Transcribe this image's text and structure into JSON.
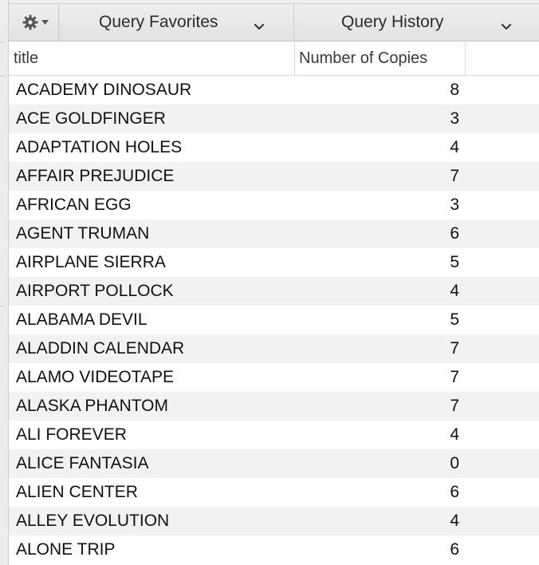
{
  "toolbar": {
    "gear_icon": "gear-icon",
    "query_favorites_label": "Query Favorites",
    "query_history_label": "Query History",
    "chevron_icon": "chevron-down-icon"
  },
  "table": {
    "columns": [
      "title",
      "Number of Copies"
    ],
    "rows": [
      {
        "title": "ACADEMY DINOSAUR",
        "copies": "8"
      },
      {
        "title": "ACE GOLDFINGER",
        "copies": "3"
      },
      {
        "title": "ADAPTATION HOLES",
        "copies": "4"
      },
      {
        "title": "AFFAIR PREJUDICE",
        "copies": "7"
      },
      {
        "title": "AFRICAN EGG",
        "copies": "3"
      },
      {
        "title": "AGENT TRUMAN",
        "copies": "6"
      },
      {
        "title": "AIRPLANE SIERRA",
        "copies": "5"
      },
      {
        "title": "AIRPORT POLLOCK",
        "copies": "4"
      },
      {
        "title": "ALABAMA DEVIL",
        "copies": "5"
      },
      {
        "title": "ALADDIN CALENDAR",
        "copies": "7"
      },
      {
        "title": "ALAMO VIDEOTAPE",
        "copies": "7"
      },
      {
        "title": "ALASKA PHANTOM",
        "copies": "7"
      },
      {
        "title": "ALI FOREVER",
        "copies": "4"
      },
      {
        "title": "ALICE FANTASIA",
        "copies": "0"
      },
      {
        "title": "ALIEN CENTER",
        "copies": "6"
      },
      {
        "title": "ALLEY EVOLUTION",
        "copies": "4"
      },
      {
        "title": "ALONE TRIP",
        "copies": "6"
      }
    ]
  }
}
